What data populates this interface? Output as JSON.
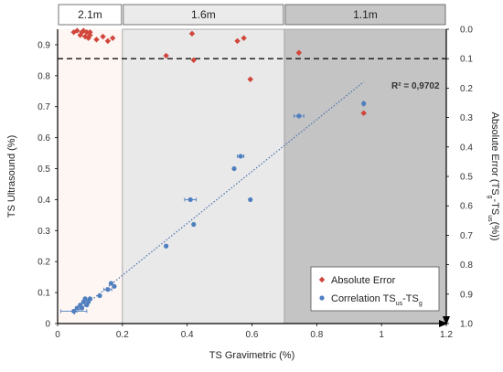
{
  "chart_data": {
    "type": "scatter",
    "xlabel": "TS Gravimetric (%)",
    "ylabel": "TS Ultrasound (%)",
    "y2label": {
      "main": "Absolute Error  (TS",
      "sub1": "g",
      "mid": "-TS",
      "sub2": "us",
      "tail": "(%))"
    },
    "xlim": [
      0,
      1.2
    ],
    "ylim": [
      0,
      0.95
    ],
    "y2lim": [
      0,
      1.0
    ],
    "x_ticks": [
      "0",
      "0.2",
      "0.4",
      "0.6",
      "0.8",
      "1",
      "1.2"
    ],
    "y_ticks": [
      "0",
      "0.1",
      "0.2",
      "0.3",
      "0.4",
      "0.5",
      "0.6",
      "0.7",
      "0.8",
      "0.9"
    ],
    "y2_ticks": [
      "0.0",
      "0.1",
      "0.2",
      "0.3",
      "0.4",
      "0.5",
      "0.6",
      "0.7",
      "0.8",
      "0.9",
      "1.0"
    ],
    "zones": [
      {
        "label": "2.1m",
        "x_start": 0,
        "x_end": 0.2,
        "color": "#fdf6f3",
        "header_color": "#ffffff"
      },
      {
        "label": "1.6m",
        "x_start": 0.2,
        "x_end": 0.7,
        "color": "#e9e9e9",
        "header_color": "#ebebeb"
      },
      {
        "label": "1.1m",
        "x_start": 0.7,
        "x_end": 1.2,
        "color": "#c4c4c4",
        "header_color": "#c6c6c6"
      }
    ],
    "threshold_line_y2": 0.1,
    "r_squared_label": "R² = 0,9702",
    "trendline": {
      "x": [
        0.05,
        0.945
      ],
      "y": [
        0.03,
        0.78
      ]
    },
    "legend_position": "bottom-right",
    "series": [
      {
        "name": "Absolute Error",
        "axis": "right",
        "marker": "diamond",
        "color": "#d0463b",
        "x": [
          0.05,
          0.06,
          0.07,
          0.075,
          0.08,
          0.085,
          0.09,
          0.095,
          0.1,
          0.1,
          0.12,
          0.14,
          0.155,
          0.17,
          0.335,
          0.415,
          0.42,
          0.555,
          0.575,
          0.595,
          0.745,
          0.945
        ],
        "y": [
          0.01,
          0.005,
          0.02,
          0.01,
          0.005,
          0.025,
          0.01,
          0.03,
          0.02,
          0.01,
          0.035,
          0.025,
          0.04,
          0.03,
          0.09,
          0.015,
          0.105,
          0.04,
          0.03,
          0.17,
          0.08,
          0.285
        ]
      },
      {
        "name": "Correlation TS",
        "name_sub1": "us",
        "name_mid": "-TS",
        "name_sub2": "g",
        "axis": "left",
        "marker": "circle",
        "color": "#4f7fbf",
        "x": [
          0.05,
          0.06,
          0.07,
          0.075,
          0.08,
          0.085,
          0.09,
          0.095,
          0.1,
          0.13,
          0.155,
          0.165,
          0.175,
          0.335,
          0.41,
          0.42,
          0.545,
          0.565,
          0.595,
          0.745,
          0.945
        ],
        "y": [
          0.04,
          0.05,
          0.06,
          0.05,
          0.07,
          0.08,
          0.06,
          0.07,
          0.08,
          0.09,
          0.11,
          0.13,
          0.12,
          0.25,
          0.4,
          0.32,
          0.5,
          0.54,
          0.4,
          0.67,
          0.71
        ],
        "x_err": [
          0.04,
          0.0,
          0.0,
          0.0,
          0.0,
          0.0,
          0.0,
          0.0,
          0.0,
          0.0,
          0.012,
          0.0,
          0.0,
          0.0,
          0.018,
          0.0,
          0.0,
          0.01,
          0.0,
          0.015,
          0.0
        ],
        "y_err": [
          0.004,
          0.0,
          0.0,
          0.0,
          0.0,
          0.0,
          0.0,
          0.0,
          0.0,
          0.0,
          0.0,
          0.0,
          0.0,
          0.005,
          0.0,
          0.006,
          0.0,
          0.0,
          0.005,
          0.005,
          0.01
        ]
      }
    ]
  }
}
